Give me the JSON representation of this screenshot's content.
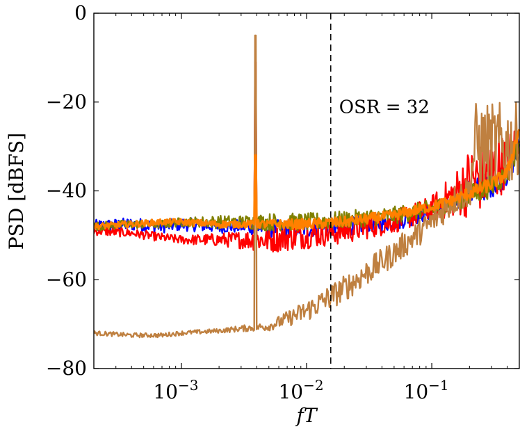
{
  "chart_data": {
    "type": "line",
    "xscale": "log",
    "xlim": [
      0.0002,
      0.5
    ],
    "ylim": [
      -80,
      0
    ],
    "xlabel": "fT",
    "ylabel": "PSD [dBFS]",
    "grid": false,
    "legend": "none",
    "xticks": [
      {
        "value": 0.001,
        "base": "10",
        "exp": "−3"
      },
      {
        "value": 0.01,
        "base": "10",
        "exp": "−2"
      },
      {
        "value": 0.1,
        "base": "10",
        "exp": "−1"
      }
    ],
    "yticks": [
      {
        "value": 0,
        "label": "0"
      },
      {
        "value": -20,
        "label": "−20"
      },
      {
        "value": -40,
        "label": "−40"
      },
      {
        "value": -60,
        "label": "−60"
      },
      {
        "value": -80,
        "label": "−80"
      }
    ],
    "vline": {
      "x": 0.0156,
      "label": "OSR = 32"
    },
    "series": [
      {
        "color": "#0000ff",
        "tone": 0.0039,
        "peak": -18,
        "x": [
          0.0002,
          0.0004,
          0.0007,
          0.001,
          0.002,
          0.003,
          0.005,
          0.01,
          0.02,
          0.05,
          0.1,
          0.15,
          0.2,
          0.3,
          0.4,
          0.5
        ],
        "y": [
          -48,
          -47.5,
          -48,
          -47.5,
          -48,
          -48,
          -48.5,
          -48.5,
          -48,
          -47,
          -44.5,
          -42.5,
          -40.5,
          -38.5,
          -36,
          -30
        ],
        "jitter": [
          1.5,
          1.5,
          1.5,
          1.5,
          1.5,
          1.5,
          2,
          2,
          2,
          2,
          2,
          2.5,
          3,
          3,
          3,
          3
        ]
      },
      {
        "color": "#ff0000",
        "tone": 0.0039,
        "peak": -11,
        "x": [
          0.0002,
          0.0004,
          0.0007,
          0.001,
          0.002,
          0.003,
          0.005,
          0.01,
          0.02,
          0.05,
          0.1,
          0.15,
          0.2,
          0.3,
          0.4,
          0.5
        ],
        "y": [
          -49,
          -49.5,
          -50.5,
          -51,
          -51,
          -51,
          -51,
          -50,
          -49,
          -47,
          -44,
          -41,
          -38,
          -36,
          -33,
          -28
        ],
        "jitter": [
          1,
          1,
          1,
          1,
          1.5,
          2,
          3,
          3,
          3,
          2.5,
          3,
          5,
          8,
          8,
          6,
          4
        ]
      },
      {
        "color": "#808000",
        "tone": 0.0039,
        "peak": -24,
        "x": [
          0.0002,
          0.0004,
          0.0007,
          0.001,
          0.002,
          0.003,
          0.005,
          0.01,
          0.02,
          0.05,
          0.1,
          0.15,
          0.2,
          0.3,
          0.4,
          0.5
        ],
        "y": [
          -48,
          -47.5,
          -47.5,
          -47,
          -47,
          -47,
          -47,
          -47,
          -46.5,
          -45.5,
          -44,
          -42.5,
          -41,
          -39,
          -36,
          -29
        ],
        "jitter": [
          1,
          1,
          1,
          1,
          1.5,
          1.5,
          2,
          2,
          2,
          2,
          2,
          2,
          2.5,
          2.5,
          2.5,
          3
        ]
      },
      {
        "color": "#bf8040",
        "tone": 0.0039,
        "peak": -5,
        "x": [
          0.0002,
          0.0004,
          0.0007,
          0.001,
          0.002,
          0.003,
          0.005,
          0.01,
          0.02,
          0.05,
          0.1,
          0.15,
          0.2,
          0.22,
          0.3,
          0.4,
          0.5
        ],
        "y": [
          -72,
          -72.5,
          -72.5,
          -72,
          -71.5,
          -71,
          -70.5,
          -67,
          -62,
          -54,
          -47,
          -42,
          -40,
          -30,
          -30,
          -30,
          -28
        ],
        "jitter": [
          0.5,
          0.5,
          0.5,
          0.5,
          0.5,
          0.7,
          1,
          2.5,
          3,
          3,
          3,
          3.5,
          4,
          10,
          10,
          10,
          8
        ]
      },
      {
        "color": "#ff8000",
        "tone": 0.0039,
        "peak": -32,
        "x": [
          0.0002,
          0.0004,
          0.0007,
          0.001,
          0.002,
          0.003,
          0.005,
          0.01,
          0.02,
          0.05,
          0.1,
          0.15,
          0.2,
          0.3,
          0.4,
          0.5
        ],
        "y": [
          -48,
          -47.5,
          -47,
          -47,
          -47.5,
          -47.5,
          -47.5,
          -47.5,
          -47,
          -45.5,
          -43.5,
          -42,
          -40.5,
          -38.5,
          -36,
          -26
        ],
        "jitter": [
          0.7,
          0.7,
          0.7,
          0.7,
          0.8,
          0.8,
          1,
          1.2,
          1.2,
          1.2,
          1.2,
          1.2,
          1.5,
          1.5,
          1.5,
          2
        ]
      }
    ]
  }
}
